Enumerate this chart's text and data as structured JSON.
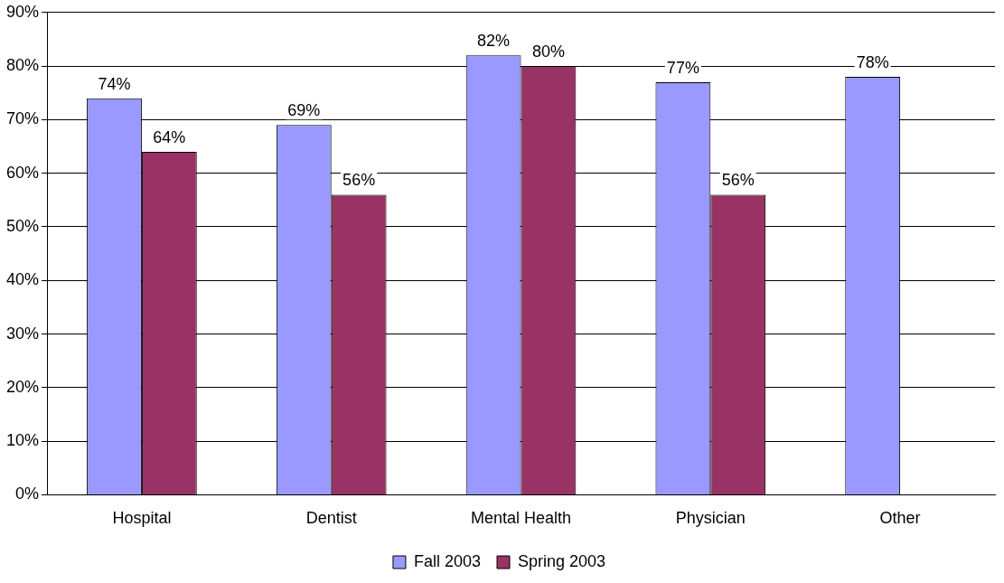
{
  "chart_data": {
    "type": "bar",
    "categories": [
      "Hospital",
      "Dentist",
      "Mental Health",
      "Physician",
      "Other"
    ],
    "series": [
      {
        "name": "Fall 2003",
        "color": "#9999ff",
        "values": [
          74,
          69,
          82,
          77,
          78
        ],
        "value_labels": [
          "74%",
          "69%",
          "82%",
          "77%",
          "78%"
        ]
      },
      {
        "name": "Spring 2003",
        "color": "#993366",
        "values": [
          64,
          56,
          80,
          56,
          null
        ],
        "value_labels": [
          "64%",
          "56%",
          "80%",
          "56%",
          null
        ]
      }
    ],
    "ylim": [
      0,
      90
    ],
    "yticks": [
      {
        "value": 0,
        "label": "0%"
      },
      {
        "value": 10,
        "label": "10%"
      },
      {
        "value": 20,
        "label": "20%"
      },
      {
        "value": 30,
        "label": "30%"
      },
      {
        "value": 40,
        "label": "40%"
      },
      {
        "value": 50,
        "label": "50%"
      },
      {
        "value": 60,
        "label": "60%"
      },
      {
        "value": 70,
        "label": "70%"
      },
      {
        "value": 80,
        "label": "80%"
      },
      {
        "value": 90,
        "label": "90%"
      }
    ],
    "grid": "y",
    "legend": "bottom"
  }
}
